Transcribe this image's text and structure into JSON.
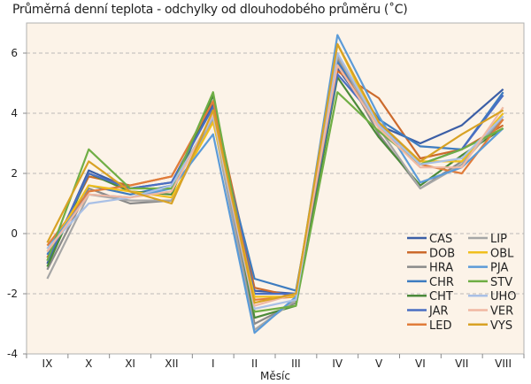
{
  "chart_data": {
    "type": "line",
    "title": "Průměrná denní teplota - odchylky od dlouhodobého průměru (˚C)",
    "xlabel": "Měsíc",
    "ylabel": "",
    "categories": [
      "IX",
      "X",
      "XI",
      "XII",
      "I",
      "II",
      "III",
      "IV",
      "V",
      "VI",
      "VII",
      "VIII"
    ],
    "ylim": [
      -4,
      7
    ],
    "yticks": [
      -4,
      -2,
      0,
      2,
      4,
      6
    ],
    "grid": true,
    "legend_position": "bottom-right",
    "background": "#fcf3e8",
    "series": [
      {
        "name": "CAS",
        "color": "#3b5ea6",
        "values": [
          -1.0,
          2.1,
          1.5,
          1.7,
          4.3,
          -1.9,
          -2.0,
          5.5,
          3.6,
          3.0,
          3.6,
          4.8
        ]
      },
      {
        "name": "DOB",
        "color": "#cc6a2c",
        "values": [
          -0.8,
          1.9,
          1.6,
          1.9,
          4.4,
          -1.8,
          -2.1,
          5.4,
          4.5,
          2.5,
          2.8,
          3.6
        ]
      },
      {
        "name": "HRA",
        "color": "#8a8a8a",
        "values": [
          -1.2,
          1.5,
          1.0,
          1.1,
          4.0,
          -3.0,
          -2.3,
          5.8,
          3.3,
          1.5,
          2.4,
          3.8
        ]
      },
      {
        "name": "CHR",
        "color": "#3d7cc0",
        "values": [
          -0.7,
          1.6,
          1.3,
          1.6,
          3.9,
          -1.5,
          -1.9,
          5.7,
          3.8,
          2.9,
          2.8,
          4.7
        ]
      },
      {
        "name": "CHT",
        "color": "#4b8a3a",
        "values": [
          -1.1,
          2.0,
          1.4,
          1.3,
          4.6,
          -2.8,
          -2.4,
          5.2,
          3.2,
          1.6,
          2.6,
          3.5
        ]
      },
      {
        "name": "JAR",
        "color": "#4a6ec2",
        "values": [
          -0.9,
          2.0,
          1.5,
          1.7,
          4.2,
          -2.0,
          -2.0,
          5.3,
          3.7,
          2.3,
          2.8,
          4.6
        ]
      },
      {
        "name": "LED",
        "color": "#e17c3a",
        "values": [
          -0.4,
          1.4,
          1.6,
          1.9,
          4.4,
          -2.2,
          -2.1,
          5.6,
          3.6,
          2.3,
          2.0,
          3.8
        ]
      },
      {
        "name": "LIP",
        "color": "#a6a6a6",
        "values": [
          -1.5,
          1.3,
          1.1,
          1.1,
          3.8,
          -3.2,
          -2.2,
          5.9,
          3.5,
          1.5,
          2.3,
          3.9
        ]
      },
      {
        "name": "OBL",
        "color": "#f0bf1e",
        "values": [
          -0.6,
          1.6,
          1.4,
          1.2,
          3.7,
          -2.1,
          -2.1,
          6.3,
          3.5,
          2.4,
          2.4,
          4.0
        ]
      },
      {
        "name": "PJA",
        "color": "#5b9bd8",
        "values": [
          -0.5,
          1.3,
          1.2,
          1.5,
          3.3,
          -3.3,
          -2.1,
          6.6,
          3.9,
          1.7,
          2.2,
          3.5
        ]
      },
      {
        "name": "STV",
        "color": "#6fae45",
        "values": [
          -0.9,
          2.8,
          1.5,
          1.5,
          4.7,
          -2.6,
          -2.4,
          4.7,
          3.4,
          2.3,
          2.8,
          3.5
        ]
      },
      {
        "name": "UHO",
        "color": "#a9c0e6",
        "values": [
          -0.5,
          1.0,
          1.2,
          1.6,
          3.9,
          -2.5,
          -2.2,
          6.0,
          3.6,
          2.3,
          2.5,
          3.9
        ]
      },
      {
        "name": "VER",
        "color": "#f0b8a2",
        "values": [
          -0.6,
          1.3,
          1.2,
          1.4,
          4.0,
          -2.4,
          -2.0,
          5.6,
          3.5,
          2.2,
          2.2,
          4.2
        ]
      },
      {
        "name": "VYS",
        "color": "#d8a224",
        "values": [
          -0.3,
          2.4,
          1.4,
          1.0,
          4.1,
          -2.3,
          -2.0,
          6.3,
          3.7,
          2.4,
          3.3,
          4.1
        ]
      }
    ]
  }
}
